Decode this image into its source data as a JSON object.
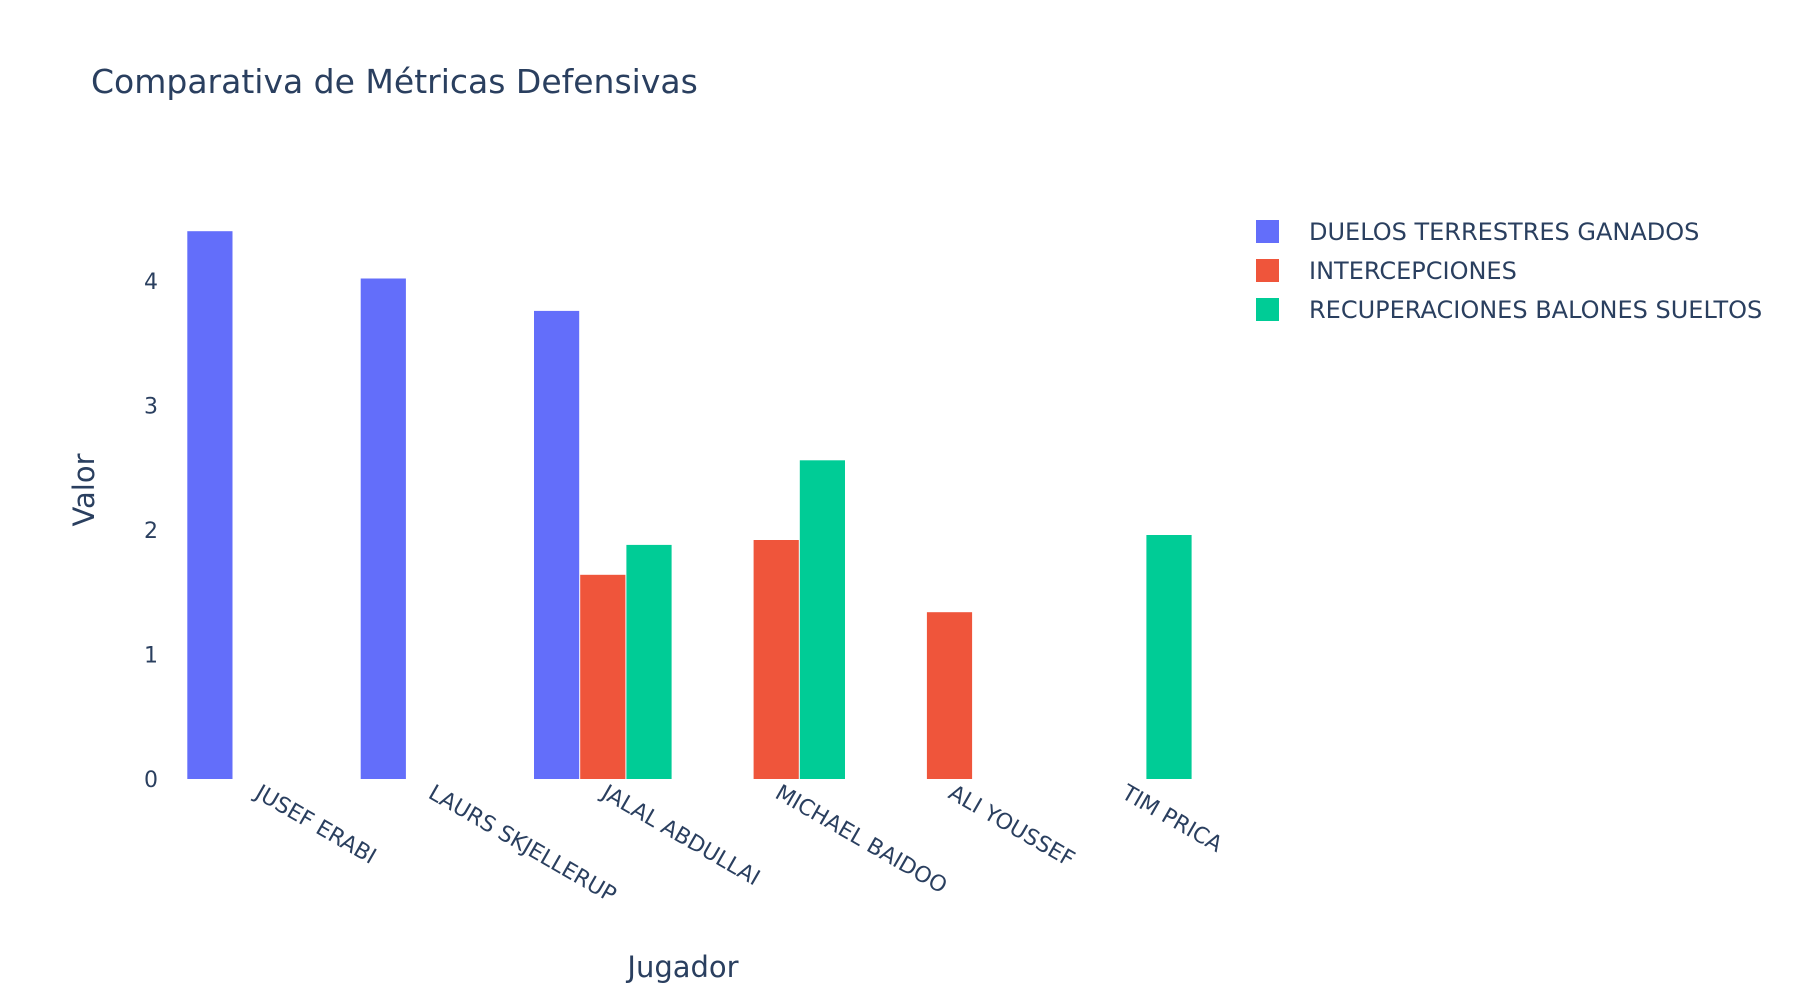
{
  "chart_data": {
    "type": "bar",
    "title": "Comparativa de Métricas Defensivas",
    "xlabel": "Jugador",
    "ylabel": "Valor",
    "categories": [
      "JUSEF ERABI",
      "LAURS SKJELLERUP",
      "JALAL ABDULLAI",
      "MICHAEL BAIDOO",
      "ALI YOUSSEF",
      "TIM PRICA"
    ],
    "ylim": [
      0,
      4.5
    ],
    "yticks": [
      0,
      1,
      2,
      3,
      4
    ],
    "grid": false,
    "legend_position": "top-right",
    "series": [
      {
        "name": "DUELOS TERRESTRES GANADOS",
        "color": "#636efa",
        "values": [
          4.4,
          4.02,
          3.76,
          null,
          null,
          null
        ]
      },
      {
        "name": "INTERCEPCIONES",
        "color": "#ef553b",
        "values": [
          null,
          null,
          1.64,
          1.92,
          1.34,
          null
        ]
      },
      {
        "name": "RECUPERACIONES BALONES SUELTOS",
        "color": "#00cc96",
        "values": [
          null,
          null,
          1.88,
          2.56,
          null,
          1.96
        ]
      }
    ]
  }
}
